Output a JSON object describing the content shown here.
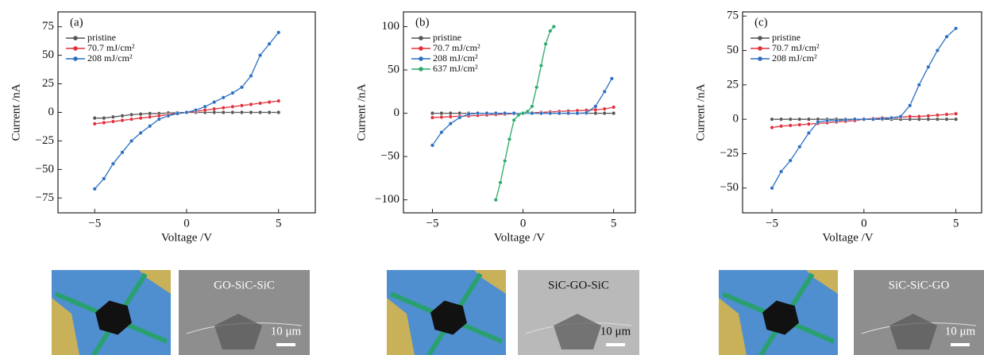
{
  "chart_data": [
    {
      "type": "line",
      "panel": "(a)",
      "xlabel": "Voltage /V",
      "ylabel": "Current /nA",
      "xlim": [
        -7,
        7
      ],
      "ylim": [
        -88,
        88
      ],
      "xticks": [
        {
          "value": -5,
          "label": "−5"
        },
        0,
        5
      ],
      "yticks": [
        {
          "value": -75,
          "label": "−75"
        },
        {
          "value": -50,
          "label": "−50"
        },
        {
          "value": -25,
          "label": "−25"
        },
        0,
        25,
        50,
        75
      ],
      "series": [
        {
          "name": "pristine",
          "color": "#555555",
          "x": [
            -5,
            -4.5,
            -4,
            -3.5,
            -3,
            -2.5,
            -2,
            -1.5,
            -1,
            -0.5,
            0,
            0.5,
            1,
            1.5,
            2,
            2.5,
            3,
            3.5,
            4,
            4.5,
            5
          ],
          "values": [
            -5,
            -5,
            -4,
            -3,
            -2,
            -1.5,
            -1,
            -1,
            -0.5,
            -0.3,
            0,
            0,
            0,
            0,
            0,
            0,
            0,
            0,
            0,
            0,
            0
          ]
        },
        {
          "name": "70.7 mJ/cm²",
          "color": "#e0303c",
          "x": [
            -5,
            -4.5,
            -4,
            -3.5,
            -3,
            -2.5,
            -2,
            -1.5,
            -1,
            -0.5,
            0,
            0.5,
            1,
            1.5,
            2,
            2.5,
            3,
            3.5,
            4,
            4.5,
            5
          ],
          "values": [
            -10,
            -9,
            -8,
            -7,
            -6,
            -5,
            -4,
            -3,
            -2,
            -1,
            0,
            1,
            2,
            3,
            4,
            5,
            6,
            7,
            8,
            9,
            10
          ]
        },
        {
          "name": "208 mJ/cm²",
          "color": "#2a6fc0",
          "x": [
            -5,
            -4.5,
            -4,
            -3.5,
            -3,
            -2.5,
            -2,
            -1.5,
            -1,
            -0.5,
            0,
            0.5,
            1,
            1.5,
            2,
            2.5,
            3,
            3.5,
            4,
            4.5,
            5
          ],
          "values": [
            -67,
            -58,
            -45,
            -35,
            -25,
            -18,
            -12,
            -6,
            -3,
            -1,
            0,
            2,
            5,
            9,
            13,
            17,
            22,
            32,
            50,
            60,
            70
          ]
        }
      ]
    },
    {
      "type": "line",
      "panel": "(b)",
      "xlabel": "Voltage /V",
      "ylabel": "Current /nA",
      "xlim": [
        -6.6,
        6.2
      ],
      "ylim": [
        -115,
        117
      ],
      "xticks": [
        {
          "value": -5,
          "label": "−5"
        },
        0,
        5
      ],
      "yticks": [
        {
          "value": -100,
          "label": "−100"
        },
        {
          "value": -50,
          "label": "−50"
        },
        0,
        50,
        100
      ],
      "series": [
        {
          "name": "pristine",
          "color": "#555555",
          "x": [
            -5,
            -4.5,
            -4,
            -3.5,
            -3,
            -2.5,
            -2,
            -1.5,
            -1,
            -0.5,
            0,
            0.5,
            1,
            1.5,
            2,
            2.5,
            3,
            3.5,
            4,
            4.5,
            5
          ],
          "values": [
            0,
            0,
            0,
            0,
            0,
            0,
            0,
            0,
            0,
            0,
            0,
            0,
            0,
            0,
            0,
            0,
            0,
            0,
            0,
            0,
            0
          ]
        },
        {
          "name": "70.7 mJ/cm²",
          "color": "#e0303c",
          "x": [
            -5,
            -4.5,
            -4,
            -3.5,
            -3,
            -2.5,
            -2,
            -1.5,
            -1,
            -0.5,
            0,
            0.5,
            1,
            1.5,
            2,
            2.5,
            3,
            3.5,
            4,
            4.5,
            5
          ],
          "values": [
            -5,
            -4.5,
            -4,
            -3.5,
            -3,
            -2.5,
            -2,
            -1.5,
            -1,
            -0.5,
            0,
            0.5,
            1,
            1.5,
            2,
            2.5,
            3,
            3.5,
            4,
            5,
            7
          ]
        },
        {
          "name": "208 mJ/cm²",
          "color": "#2a6fc0",
          "x": [
            -5,
            -4.5,
            -4,
            -3.5,
            -3,
            -2.5,
            -2,
            -1.5,
            -1,
            -0.5,
            0,
            0.5,
            1,
            1.5,
            2,
            2.5,
            3,
            3.5,
            4,
            4.5,
            4.9
          ],
          "values": [
            -37,
            -22,
            -12,
            -5,
            -1,
            0,
            0,
            0,
            0,
            0,
            0,
            0,
            0,
            0,
            0,
            0,
            0,
            0.5,
            8,
            25,
            40
          ]
        },
        {
          "name": "637 mJ/cm²",
          "color": "#2aaa6a",
          "x": [
            -1.5,
            -1.25,
            -1,
            -0.75,
            -0.5,
            -0.25,
            0,
            0.25,
            0.5,
            0.75,
            1,
            1.25,
            1.5,
            1.7
          ],
          "values": [
            -100,
            -80,
            -55,
            -30,
            -8,
            -2,
            0,
            2,
            8,
            30,
            55,
            80,
            95,
            100
          ]
        }
      ]
    },
    {
      "type": "line",
      "panel": "(c)",
      "xlabel": "Voltage /V",
      "ylabel": "Current /nA",
      "xlim": [
        -6.6,
        6.4
      ],
      "ylim": [
        -68,
        78
      ],
      "xticks": [
        {
          "value": -5,
          "label": "−5"
        },
        0,
        5
      ],
      "yticks": [
        {
          "value": -50,
          "label": "−50"
        },
        {
          "value": -25,
          "label": "−25"
        },
        0,
        25,
        50,
        75
      ],
      "series": [
        {
          "name": "pristine",
          "color": "#555555",
          "x": [
            -5,
            -4.5,
            -4,
            -3.5,
            -3,
            -2.5,
            -2,
            -1.5,
            -1,
            -0.5,
            0,
            0.5,
            1,
            1.5,
            2,
            2.5,
            3,
            3.5,
            4,
            4.5,
            5
          ],
          "values": [
            0,
            0,
            0,
            0,
            0,
            0,
            0,
            0,
            0,
            0,
            0,
            0,
            0,
            0,
            0,
            0,
            0,
            0,
            0,
            0,
            0
          ]
        },
        {
          "name": "70.7 mJ/cm²",
          "color": "#e0303c",
          "x": [
            -5,
            -4.5,
            -4,
            -3.5,
            -3,
            -2.5,
            -2,
            -1.5,
            -1,
            -0.5,
            0,
            0.5,
            1,
            1.5,
            2,
            2.5,
            3,
            3.5,
            4,
            4.5,
            5
          ],
          "values": [
            -6,
            -5,
            -4.5,
            -4,
            -3.5,
            -3,
            -2.5,
            -2,
            -1.5,
            -1,
            0,
            0.5,
            1,
            1,
            1.5,
            2,
            2,
            2.5,
            3,
            3.5,
            4
          ]
        },
        {
          "name": "208 mJ/cm²",
          "color": "#2a6fc0",
          "x": [
            -5,
            -4.5,
            -4,
            -3.5,
            -3,
            -2.5,
            -2,
            -1.5,
            -1,
            -0.5,
            0,
            0.5,
            1,
            1.5,
            2,
            2.5,
            3,
            3.5,
            4,
            4.5,
            5
          ],
          "values": [
            -50,
            -38,
            -30,
            -20,
            -10,
            -2,
            -1,
            -1,
            -0.5,
            0,
            0,
            0,
            0.5,
            1,
            2,
            10,
            25,
            38,
            50,
            60,
            66
          ]
        }
      ]
    }
  ],
  "insets": [
    {
      "label": "GO-SiC-SiC",
      "scale": "10 μm"
    },
    {
      "label": "SiC-GO-SiC",
      "scale": "10 μm"
    },
    {
      "label": "SiC-SiC-GO",
      "scale": "10 μm"
    }
  ]
}
